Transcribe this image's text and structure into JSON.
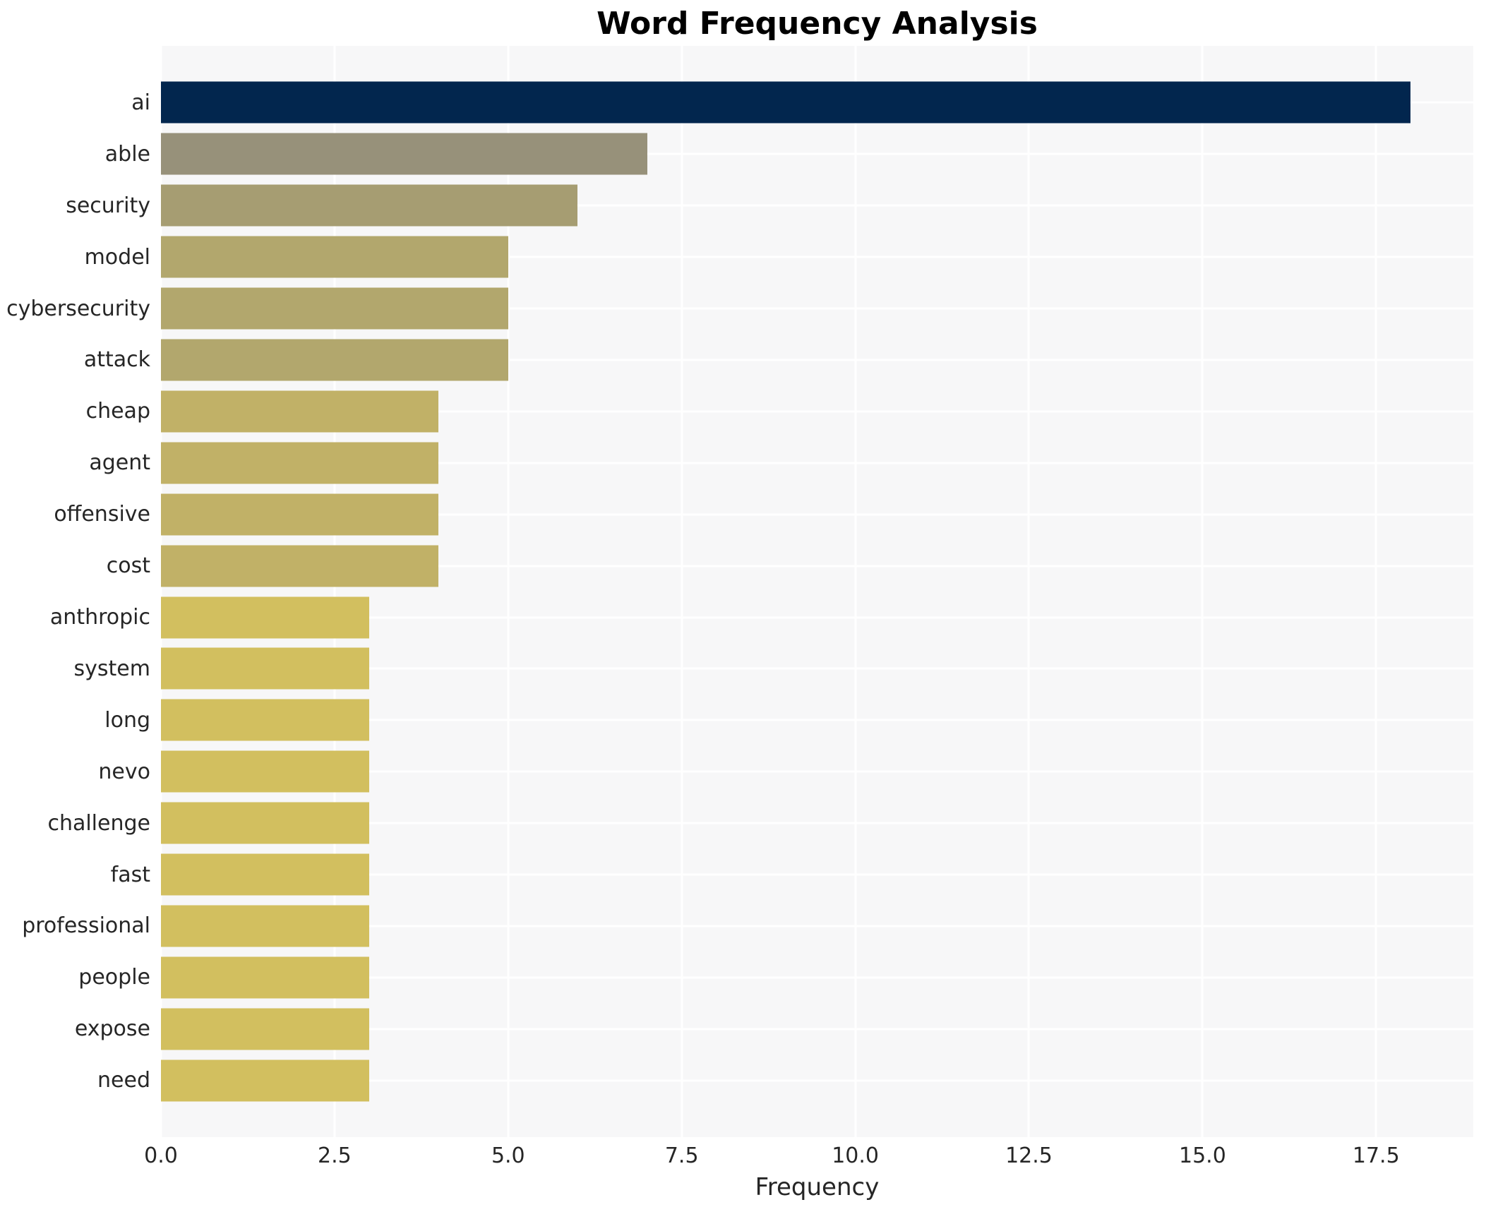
{
  "title": "Word Frequency Analysis",
  "chart_data": {
    "type": "bar",
    "orientation": "horizontal",
    "title": "Word Frequency Analysis",
    "xlabel": "Frequency",
    "ylabel": "",
    "categories": [
      "ai",
      "able",
      "security",
      "model",
      "cybersecurity",
      "attack",
      "cheap",
      "agent",
      "offensive",
      "cost",
      "anthropic",
      "system",
      "long",
      "nevo",
      "challenge",
      "fast",
      "professional",
      "people",
      "expose",
      "need"
    ],
    "values": [
      18,
      7,
      6,
      5,
      5,
      5,
      4,
      4,
      4,
      4,
      3,
      3,
      3,
      3,
      3,
      3,
      3,
      3,
      3,
      3
    ],
    "bar_colors": [
      "#02264e",
      "#97917a",
      "#a69d72",
      "#b2a76d",
      "#b2a76d",
      "#b2a76d",
      "#c1b167",
      "#c1b167",
      "#c1b167",
      "#c1b167",
      "#d2bf5f",
      "#d2bf5f",
      "#d2bf5f",
      "#d2bf5f",
      "#d2bf5f",
      "#d2bf5f",
      "#d2bf5f",
      "#d2bf5f",
      "#d2bf5f",
      "#d2bf5f"
    ],
    "xlim": [
      0,
      18.9
    ],
    "xticks": [
      0.0,
      2.5,
      5.0,
      7.5,
      10.0,
      12.5,
      15.0,
      17.5
    ],
    "xtick_labels": [
      "0.0",
      "2.5",
      "5.0",
      "7.5",
      "10.0",
      "12.5",
      "15.0",
      "17.5"
    ],
    "grid": true,
    "legend": "none",
    "colors": {
      "panel_background": "#f7f7f8",
      "grid_line": "#ffffff",
      "title_text": "#000000",
      "axis_text": "#262626"
    }
  }
}
